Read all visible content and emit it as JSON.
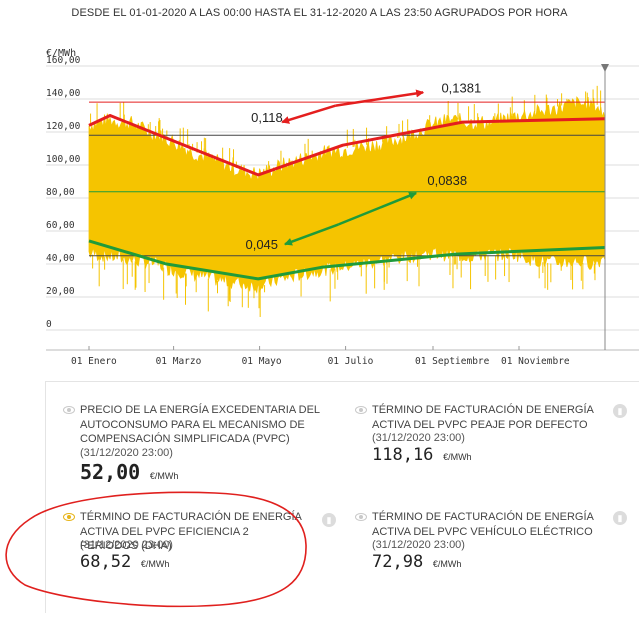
{
  "header": {
    "title": "DESDE EL 01-01-2020 A LAS 00:00 HASTA EL 31-12-2020 A LAS 23:50 AGRUPADOS POR HORA"
  },
  "colors": {
    "band": "#f5c400",
    "grid": "#dddddd",
    "axis": "#555555",
    "red": "#e41e1e",
    "green": "#1f9b3a",
    "hline": "#555555"
  },
  "chart_data": {
    "type": "area",
    "title": "DESDE EL 01-01-2020 A LAS 00:00 HASTA EL 31-12-2020 A LAS 23:50 AGRUPADOS POR HORA",
    "ylabel": "€/MWh",
    "xlabel": "",
    "ylim": [
      0,
      160
    ],
    "xlim_days": [
      0,
      366
    ],
    "yticks": [
      "0",
      "20,00",
      "40,00",
      "60,00",
      "80,00",
      "100,00",
      "120,00",
      "140,00",
      "160,00"
    ],
    "ytick_values": [
      0,
      20,
      40,
      60,
      80,
      100,
      120,
      140,
      160
    ],
    "xticks": [
      {
        "label": "01 Enero",
        "day": 0
      },
      {
        "label": "01 Marzo",
        "day": 60
      },
      {
        "label": "01 Mayo",
        "day": 121
      },
      {
        "label": "01 Julio",
        "day": 182
      },
      {
        "label": "01 Septiembre",
        "day": 244
      },
      {
        "label": "01 Noviembre",
        "day": 305
      }
    ],
    "grid": true,
    "band_envelope": {
      "days": [
        0,
        15,
        30,
        45,
        60,
        75,
        90,
        105,
        120,
        135,
        150,
        165,
        180,
        195,
        210,
        225,
        240,
        255,
        270,
        285,
        300,
        315,
        330,
        345,
        360,
        366
      ],
      "upper": [
        125,
        128,
        126,
        120,
        115,
        108,
        103,
        98,
        95,
        100,
        104,
        108,
        110,
        112,
        114,
        118,
        124,
        128,
        127,
        126,
        130,
        132,
        135,
        138,
        137,
        130
      ],
      "lower": [
        46,
        44,
        42,
        40,
        36,
        33,
        30,
        28,
        26,
        30,
        33,
        36,
        38,
        40,
        42,
        44,
        46,
        45,
        44,
        45,
        46,
        42,
        40,
        41,
        40,
        44
      ]
    },
    "series": [
      {
        "name": "",
        "color": "red",
        "x": [
          0,
          15,
          120,
          180,
          265,
          366
        ],
        "y": [
          124,
          130,
          94,
          112,
          126,
          128
        ]
      },
      {
        "name": "",
        "color": "green",
        "x": [
          0,
          55,
          120,
          165,
          260,
          366
        ],
        "y": [
          54,
          40,
          31,
          38,
          46,
          50
        ]
      }
    ],
    "reference_lines": [
      {
        "value": 138.1,
        "color": "red"
      },
      {
        "value": 118,
        "color": "black"
      },
      {
        "value": 83.8,
        "color": "green"
      },
      {
        "value": 45,
        "color": "black"
      }
    ],
    "annotations": [
      {
        "text": "0,1381",
        "x": 250,
        "y": 144
      },
      {
        "text": "0,118",
        "x": 115,
        "y": 126
      },
      {
        "text": "0,0838",
        "x": 240,
        "y": 88
      },
      {
        "text": "0,045",
        "x": 111,
        "y": 49
      }
    ],
    "arrows": [
      {
        "color": "red",
        "from": [
          175,
          136
        ],
        "to": [
          237,
          144
        ]
      },
      {
        "color": "red",
        "from": [
          175,
          136
        ],
        "to": [
          137,
          126
        ]
      },
      {
        "color": "green",
        "from": [
          177,
          64
        ],
        "to": [
          232,
          83
        ]
      },
      {
        "color": "green",
        "from": [
          177,
          64
        ],
        "to": [
          139,
          52
        ]
      }
    ]
  },
  "cards": [
    {
      "name": "PRECIO DE LA ENERGÍA EXCEDENTARIA DEL AUTOCONSUMO PARA EL MECANISMO DE COMPENSACIÓN SIMPLIFICADA (PVPC)",
      "date": "(31/12/2020 23:00)",
      "value": "52,00",
      "unit": "€/MWh",
      "active": false
    },
    {
      "name": "TÉRMINO DE FACTURACIÓN DE ENERGÍA ACTIVA DEL PVPC PEAJE POR DEFECTO",
      "date": "(31/12/2020 23:00)",
      "value": "118,16",
      "unit": "€/MWh",
      "active": false
    },
    {
      "name": "TÉRMINO DE FACTURACIÓN DE ENERGÍA ACTIVA DEL PVPC EFICIENCIA 2 PERIODOS (DHA)",
      "date": "(31/12/2020 23:00)",
      "value": "68,52",
      "unit": "€/MWh",
      "active": true
    },
    {
      "name": "TÉRMINO DE FACTURACIÓN DE ENERGÍA ACTIVA DEL PVPC VEHÍCULO ELÉCTRICO",
      "date": "(31/12/2020 23:00)",
      "value": "72,98",
      "unit": "€/MWh",
      "active": false
    }
  ]
}
